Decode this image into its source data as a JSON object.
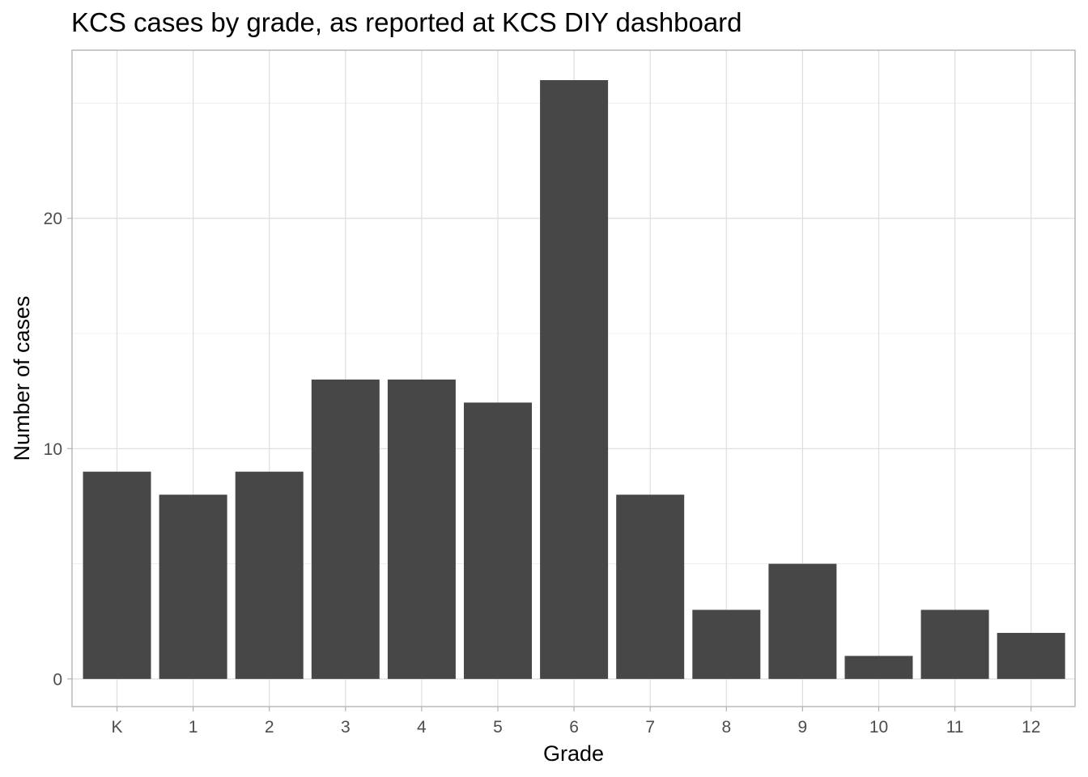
{
  "chart_data": {
    "type": "bar",
    "title": "KCS cases by grade, as reported at KCS DIY dashboard",
    "xlabel": "Grade",
    "ylabel": "Number of cases",
    "categories": [
      "K",
      "1",
      "2",
      "3",
      "4",
      "5",
      "6",
      "7",
      "8",
      "9",
      "10",
      "11",
      "12"
    ],
    "values": [
      9,
      8,
      9,
      13,
      13,
      12,
      26,
      8,
      3,
      5,
      1,
      3,
      2
    ],
    "yticks": [
      0,
      10,
      20
    ],
    "ylim": [
      -1.2,
      27.3
    ],
    "grid": true,
    "legend": "none",
    "colors": {
      "bar": "#474747",
      "grid_major": "#dedede",
      "grid_minor": "#ececec",
      "panel_border": "#b3b3b3",
      "tick_text": "#4d4d4d",
      "text": "#000000"
    }
  }
}
